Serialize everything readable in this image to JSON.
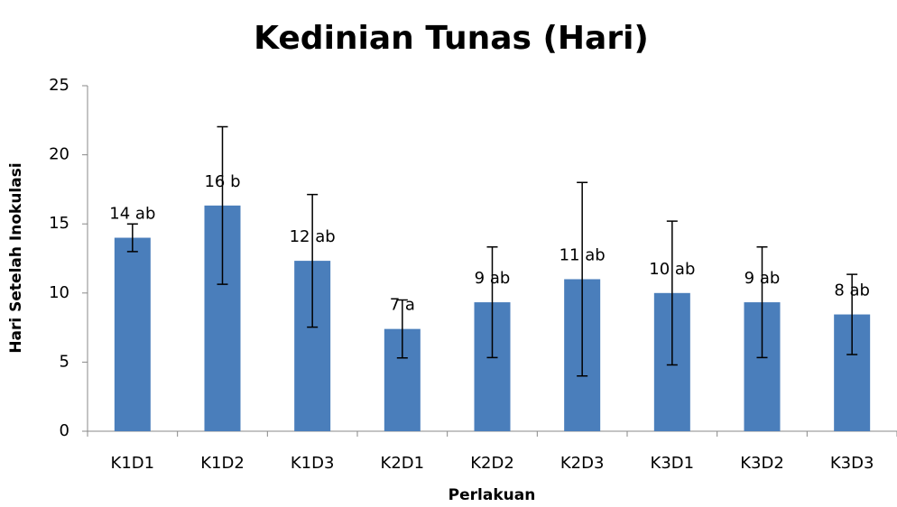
{
  "chart_data": {
    "type": "bar",
    "title": "Kedinian Tunas (Hari)",
    "x_label": "Perlakuan",
    "y_label": "Hari Setelah Inokulasi",
    "categories": [
      "K1D1",
      "K1D2",
      "K1D3",
      "K2D1",
      "K2D2",
      "K2D3",
      "K3D1",
      "K3D2",
      "K3D3"
    ],
    "values": [
      14.0,
      16.33,
      12.33,
      7.4,
      9.33,
      11.0,
      10.0,
      9.33,
      8.45
    ],
    "value_labels": [
      "14 ab",
      "16 b",
      "12 ab",
      "7 a",
      "9 ab",
      "11 ab",
      "10 ab",
      "9 ab",
      "8 ab"
    ],
    "errors": [
      1.0,
      5.7,
      4.8,
      2.1,
      4.0,
      7.0,
      5.2,
      4.0,
      2.9
    ],
    "color": "#4a7ebb",
    "ylim": [
      0,
      25
    ],
    "yticks": [
      0,
      5,
      10,
      15,
      20,
      25
    ],
    "grid": false
  }
}
